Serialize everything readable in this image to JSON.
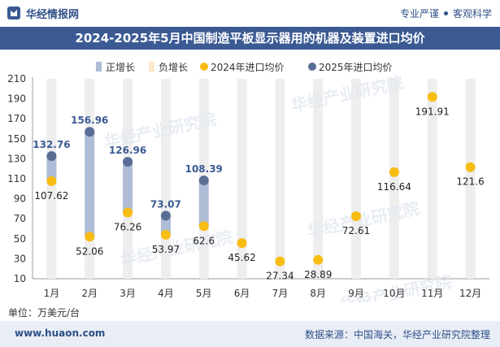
{
  "header": {
    "brand": "华经情报网",
    "tagline_left": "专业严谨",
    "tagline_right": "客观科学"
  },
  "footer": {
    "unit": "单位：万美元/台",
    "site": "www.huaon.com",
    "source": "数据来源：中国海关，华经产业研究院整理"
  },
  "colors": {
    "title_bg": "#3b5a93",
    "positive": "#aebcd6",
    "negative": "#fbe9cc",
    "series_2024": "#f7bd12",
    "series_2025": "#5a6d95",
    "column_bg": "#eeeeee"
  },
  "chart_data": {
    "type": "scatter",
    "title": "2024-2025年5月中国制造平板显示器用的机器及装置进口均价",
    "categories": [
      "1月",
      "2月",
      "3月",
      "4月",
      "5月",
      "6月",
      "7月",
      "8月",
      "9月",
      "10月",
      "11月",
      "12月"
    ],
    "ylim": [
      10,
      210
    ],
    "yticks": [
      10,
      30,
      50,
      70,
      90,
      110,
      130,
      150,
      170,
      190,
      210
    ],
    "legend": [
      "正增长",
      "负增长",
      "2024年进口均价",
      "2025年进口均价"
    ],
    "legend_position": "top",
    "series": [
      {
        "name": "2024年进口均价",
        "values": [
          107.62,
          52.06,
          76.26,
          53.97,
          62.6,
          45.62,
          27.34,
          28.89,
          72.61,
          116.64,
          191.91,
          121.6
        ],
        "labels": [
          "107.62",
          "52.06",
          "76.26",
          "53.97",
          "62.6",
          "45.62",
          "27.34",
          "28.89",
          "72.61",
          "116.64",
          "191.91",
          "121.6"
        ]
      },
      {
        "name": "2025年进口均价",
        "values": [
          132.76,
          156.96,
          126.96,
          73.07,
          108.39,
          null,
          null,
          null,
          null,
          null,
          null,
          null
        ],
        "labels": [
          "132.76",
          "156.96",
          "126.96",
          "73.07",
          "108.39",
          "",
          "",
          "",
          "",
          "",
          "",
          ""
        ]
      }
    ],
    "watermark": "华经产业研究院"
  }
}
